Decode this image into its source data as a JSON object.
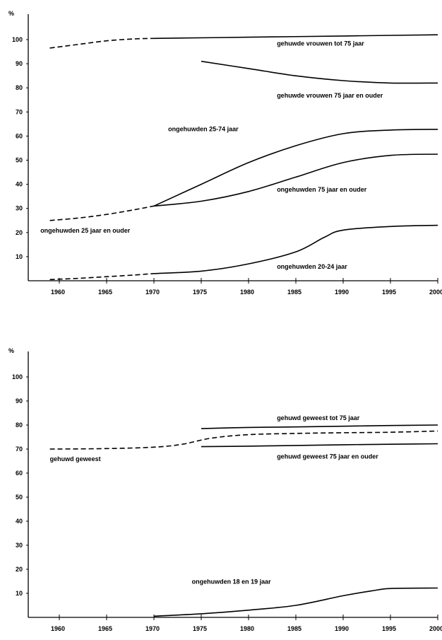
{
  "chart_data": [
    {
      "type": "line",
      "ylabel": "%",
      "xlim": [
        1960,
        2000
      ],
      "ylim": [
        0,
        100
      ],
      "x_ticks": [
        "1960",
        "1965",
        "1970",
        "1975",
        "1980",
        "1985",
        "1990",
        "1995",
        "2000"
      ],
      "y_ticks": [
        "10",
        "20",
        "30",
        "40",
        "50",
        "60",
        "70",
        "80",
        "90",
        "100"
      ],
      "grid": false,
      "series": [
        {
          "name": "gehuwde vrouwen tot 75 jaar",
          "style": "dashed",
          "x": [
            1959,
            1962,
            1965,
            1968,
            1970
          ],
          "y": [
            96.5,
            98,
            99.5,
            100.3,
            100.5
          ]
        },
        {
          "name": "gehuwde vrouwen tot 75 jaar",
          "style": "solid",
          "x": [
            1970,
            1980,
            1990,
            2000
          ],
          "y": [
            100.5,
            101,
            101.5,
            102
          ]
        },
        {
          "name": "gehuwde vrouwen 75 jaar en ouder",
          "style": "solid",
          "x": [
            1975,
            1980,
            1985,
            1990,
            1995,
            2000
          ],
          "y": [
            91,
            88,
            85,
            83,
            82,
            82
          ]
        },
        {
          "name": "ongehuwden 25 jaar en ouder",
          "style": "dashed",
          "x": [
            1959,
            1962,
            1965,
            1968,
            1970
          ],
          "y": [
            25,
            26,
            27.5,
            29.5,
            31
          ]
        },
        {
          "name": "ongehuwden 25-74 jaar",
          "style": "solid",
          "x": [
            1970,
            1975,
            1980,
            1985,
            1990,
            1995,
            2000
          ],
          "y": [
            31,
            40,
            49,
            56,
            61,
            62.5,
            62.8
          ]
        },
        {
          "name": "ongehuwden 75 jaar en ouder",
          "style": "solid",
          "x": [
            1970,
            1975,
            1980,
            1985,
            1990,
            1995,
            2000
          ],
          "y": [
            31,
            33,
            37,
            43,
            49,
            52,
            52.5
          ]
        },
        {
          "name": "ongehuwden 20-24 jaar",
          "style": "dashed",
          "x": [
            1959,
            1962,
            1965,
            1968,
            1970
          ],
          "y": [
            0.5,
            1,
            1.7,
            2.4,
            3
          ]
        },
        {
          "name": "ongehuwden 20-24 jaar",
          "style": "solid",
          "x": [
            1970,
            1975,
            1980,
            1985,
            1988,
            1990,
            1995,
            2000
          ],
          "y": [
            3,
            4,
            7,
            12,
            18,
            21,
            22.5,
            23
          ]
        }
      ],
      "annotations": [
        {
          "text": "gehuwde vrouwen tot 75 jaar",
          "x": 1983,
          "y": 97.5
        },
        {
          "text": "gehuwde vrouwen 75 jaar en ouder",
          "x": 1983,
          "y": 76
        },
        {
          "text": "ongehuwden 25-74 jaar",
          "x": 1971.5,
          "y": 62
        },
        {
          "text": "ongehuwden 75 jaar en ouder",
          "x": 1983,
          "y": 37
        },
        {
          "text": "ongehuwden 25 jaar en ouder",
          "x": 1958,
          "y": 20
        },
        {
          "text": "ongehuwden 20-24 jaar",
          "x": 1983,
          "y": 5
        }
      ]
    },
    {
      "type": "line",
      "ylabel": "%",
      "xlim": [
        1960,
        2000
      ],
      "ylim": [
        0,
        100
      ],
      "x_ticks": [
        "1960",
        "1965",
        "1970",
        "1975",
        "1980",
        "1985",
        "1990",
        "1995",
        "2000"
      ],
      "y_ticks": [
        "10",
        "20",
        "30",
        "40",
        "50",
        "60",
        "70",
        "80",
        "90",
        "100"
      ],
      "grid": false,
      "series": [
        {
          "name": "gehuwd geweest",
          "style": "dashed",
          "x": [
            1959,
            1965,
            1970,
            1973,
            1976,
            1980,
            1985,
            1990,
            1995,
            2000
          ],
          "y": [
            70,
            70.2,
            70.8,
            72,
            74.5,
            76,
            76.5,
            76.8,
            77,
            77.5
          ]
        },
        {
          "name": "gehuwd geweest tot 75 jaar",
          "style": "solid",
          "x": [
            1975,
            1980,
            1985,
            1990,
            1995,
            2000
          ],
          "y": [
            78.5,
            79,
            79.2,
            79.5,
            79.8,
            80
          ]
        },
        {
          "name": "gehuwd geweest 75 jaar en ouder",
          "style": "solid",
          "x": [
            1975,
            1980,
            1985,
            1990,
            1995,
            2000
          ],
          "y": [
            71,
            71.2,
            71.5,
            71.8,
            72,
            72.2
          ]
        },
        {
          "name": "ongehuwden 18 en 19 jaar",
          "style": "solid",
          "x": [
            1970,
            1975,
            1980,
            1985,
            1990,
            1993,
            1995,
            2000
          ],
          "y": [
            0.5,
            1.5,
            3,
            5,
            9,
            11,
            12,
            12.2
          ]
        }
      ],
      "annotations": [
        {
          "text": "gehuwd geweest tot 75 jaar",
          "x": 1983,
          "y": 82
        },
        {
          "text": "gehuwd geweest 75 jaar en ouder",
          "x": 1983,
          "y": 66
        },
        {
          "text": "gehuwd geweest",
          "x": 1959,
          "y": 65
        },
        {
          "text": "ongehuwden 18 en 19 jaar",
          "x": 1974,
          "y": 14
        }
      ]
    }
  ]
}
